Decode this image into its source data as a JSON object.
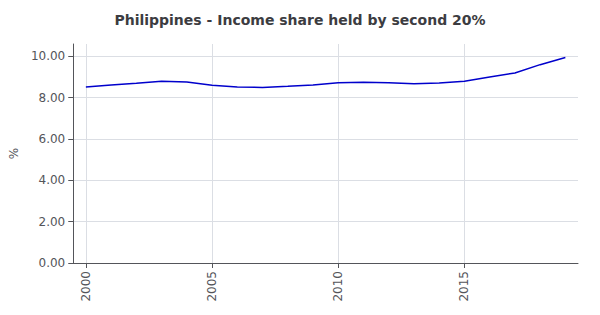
{
  "chart_data": {
    "type": "line",
    "title": "Philippines - Income share held by second 20%",
    "ylabel": "%",
    "x": [
      2000,
      2001,
      2002,
      2003,
      2004,
      2005,
      2006,
      2007,
      2008,
      2009,
      2010,
      2011,
      2012,
      2013,
      2014,
      2015,
      2016,
      2017,
      2018,
      2019
    ],
    "values": [
      8.52,
      8.61,
      8.7,
      8.8,
      8.76,
      8.6,
      8.52,
      8.5,
      8.55,
      8.62,
      8.72,
      8.75,
      8.73,
      8.68,
      8.71,
      8.8,
      9.0,
      9.2,
      9.6,
      9.95
    ],
    "color": "#0000cc",
    "xlim": [
      1999.5,
      2019.5
    ],
    "ylim": [
      0,
      10.6
    ],
    "xticks": [
      2000,
      2005,
      2010,
      2015
    ],
    "yticks": [
      {
        "value": 0,
        "label": "0.00"
      },
      {
        "value": 2,
        "label": "2.00"
      },
      {
        "value": 4,
        "label": "4.00"
      },
      {
        "value": 6,
        "label": "6.00"
      },
      {
        "value": 8,
        "label": "8.00"
      },
      {
        "value": 10,
        "label": "10.00"
      }
    ],
    "grid": true
  }
}
